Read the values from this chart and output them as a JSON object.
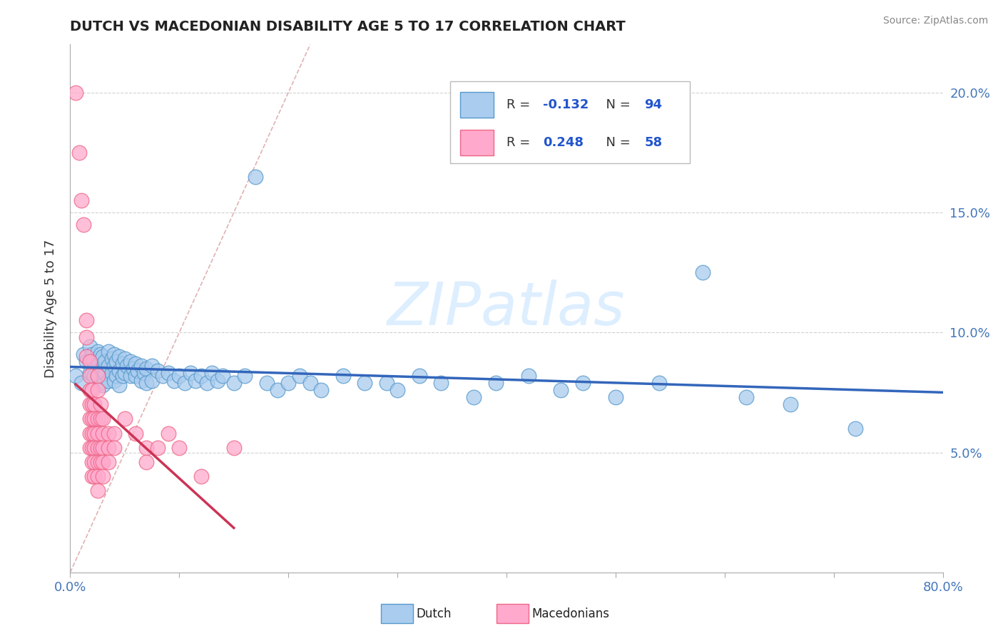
{
  "title": "DUTCH VS MACEDONIAN DISABILITY AGE 5 TO 17 CORRELATION CHART",
  "source": "Source: ZipAtlas.com",
  "ylabel": "Disability Age 5 to 17",
  "xlim": [
    0.0,
    0.8
  ],
  "ylim": [
    0.0,
    0.22
  ],
  "yticks": [
    0.05,
    0.1,
    0.15,
    0.2
  ],
  "yticklabels": [
    "5.0%",
    "10.0%",
    "15.0%",
    "20.0%"
  ],
  "dutch_R": -0.132,
  "dutch_N": 94,
  "mac_R": 0.248,
  "mac_N": 58,
  "dutch_face_color": "#aaccee",
  "dutch_edge_color": "#5599cc",
  "mac_face_color": "#ffaacc",
  "mac_edge_color": "#ee6688",
  "dutch_line_color": "#3366bb",
  "mac_line_color": "#cc3355",
  "ref_line_color": "#ddaaaa",
  "watermark": "ZIPatlas",
  "watermark_color": "#ddeeff",
  "background_color": "#ffffff",
  "grid_color": "#cccccc",
  "dutch_scatter": [
    [
      0.005,
      0.082
    ],
    [
      0.01,
      0.079
    ],
    [
      0.012,
      0.091
    ],
    [
      0.015,
      0.088
    ],
    [
      0.018,
      0.094
    ],
    [
      0.018,
      0.083
    ],
    [
      0.02,
      0.091
    ],
    [
      0.02,
      0.087
    ],
    [
      0.02,
      0.083
    ],
    [
      0.022,
      0.088
    ],
    [
      0.022,
      0.082
    ],
    [
      0.025,
      0.092
    ],
    [
      0.025,
      0.088
    ],
    [
      0.025,
      0.082
    ],
    [
      0.028,
      0.091
    ],
    [
      0.028,
      0.085
    ],
    [
      0.028,
      0.079
    ],
    [
      0.03,
      0.09
    ],
    [
      0.03,
      0.084
    ],
    [
      0.03,
      0.078
    ],
    [
      0.032,
      0.088
    ],
    [
      0.032,
      0.083
    ],
    [
      0.035,
      0.092
    ],
    [
      0.035,
      0.086
    ],
    [
      0.035,
      0.08
    ],
    [
      0.038,
      0.089
    ],
    [
      0.038,
      0.083
    ],
    [
      0.04,
      0.091
    ],
    [
      0.04,
      0.086
    ],
    [
      0.04,
      0.08
    ],
    [
      0.042,
      0.088
    ],
    [
      0.042,
      0.082
    ],
    [
      0.045,
      0.09
    ],
    [
      0.045,
      0.084
    ],
    [
      0.045,
      0.078
    ],
    [
      0.048,
      0.087
    ],
    [
      0.048,
      0.082
    ],
    [
      0.05,
      0.089
    ],
    [
      0.05,
      0.083
    ],
    [
      0.052,
      0.086
    ],
    [
      0.055,
      0.088
    ],
    [
      0.055,
      0.082
    ],
    [
      0.058,
      0.085
    ],
    [
      0.06,
      0.087
    ],
    [
      0.06,
      0.082
    ],
    [
      0.062,
      0.084
    ],
    [
      0.065,
      0.086
    ],
    [
      0.065,
      0.08
    ],
    [
      0.068,
      0.083
    ],
    [
      0.07,
      0.085
    ],
    [
      0.07,
      0.079
    ],
    [
      0.075,
      0.086
    ],
    [
      0.075,
      0.08
    ],
    [
      0.08,
      0.084
    ],
    [
      0.085,
      0.082
    ],
    [
      0.09,
      0.083
    ],
    [
      0.095,
      0.08
    ],
    [
      0.1,
      0.082
    ],
    [
      0.105,
      0.079
    ],
    [
      0.11,
      0.083
    ],
    [
      0.115,
      0.08
    ],
    [
      0.12,
      0.082
    ],
    [
      0.125,
      0.079
    ],
    [
      0.13,
      0.083
    ],
    [
      0.135,
      0.08
    ],
    [
      0.14,
      0.082
    ],
    [
      0.15,
      0.079
    ],
    [
      0.16,
      0.082
    ],
    [
      0.17,
      0.165
    ],
    [
      0.18,
      0.079
    ],
    [
      0.19,
      0.076
    ],
    [
      0.2,
      0.079
    ],
    [
      0.21,
      0.082
    ],
    [
      0.22,
      0.079
    ],
    [
      0.23,
      0.076
    ],
    [
      0.25,
      0.082
    ],
    [
      0.27,
      0.079
    ],
    [
      0.29,
      0.079
    ],
    [
      0.3,
      0.076
    ],
    [
      0.32,
      0.082
    ],
    [
      0.34,
      0.079
    ],
    [
      0.37,
      0.073
    ],
    [
      0.39,
      0.079
    ],
    [
      0.42,
      0.082
    ],
    [
      0.45,
      0.076
    ],
    [
      0.47,
      0.079
    ],
    [
      0.5,
      0.073
    ],
    [
      0.54,
      0.079
    ],
    [
      0.58,
      0.125
    ],
    [
      0.62,
      0.073
    ],
    [
      0.66,
      0.07
    ],
    [
      0.72,
      0.06
    ]
  ],
  "mac_scatter": [
    [
      0.005,
      0.2
    ],
    [
      0.008,
      0.175
    ],
    [
      0.01,
      0.155
    ],
    [
      0.012,
      0.145
    ],
    [
      0.015,
      0.105
    ],
    [
      0.015,
      0.098
    ],
    [
      0.015,
      0.09
    ],
    [
      0.018,
      0.088
    ],
    [
      0.018,
      0.082
    ],
    [
      0.018,
      0.076
    ],
    [
      0.018,
      0.07
    ],
    [
      0.018,
      0.064
    ],
    [
      0.018,
      0.058
    ],
    [
      0.018,
      0.052
    ],
    [
      0.02,
      0.076
    ],
    [
      0.02,
      0.07
    ],
    [
      0.02,
      0.064
    ],
    [
      0.02,
      0.058
    ],
    [
      0.02,
      0.052
    ],
    [
      0.02,
      0.046
    ],
    [
      0.02,
      0.04
    ],
    [
      0.022,
      0.07
    ],
    [
      0.022,
      0.064
    ],
    [
      0.022,
      0.058
    ],
    [
      0.022,
      0.052
    ],
    [
      0.022,
      0.046
    ],
    [
      0.022,
      0.04
    ],
    [
      0.025,
      0.082
    ],
    [
      0.025,
      0.076
    ],
    [
      0.025,
      0.064
    ],
    [
      0.025,
      0.058
    ],
    [
      0.025,
      0.052
    ],
    [
      0.025,
      0.046
    ],
    [
      0.025,
      0.04
    ],
    [
      0.025,
      0.034
    ],
    [
      0.028,
      0.07
    ],
    [
      0.028,
      0.064
    ],
    [
      0.028,
      0.052
    ],
    [
      0.028,
      0.046
    ],
    [
      0.03,
      0.064
    ],
    [
      0.03,
      0.058
    ],
    [
      0.03,
      0.052
    ],
    [
      0.03,
      0.046
    ],
    [
      0.03,
      0.04
    ],
    [
      0.035,
      0.058
    ],
    [
      0.035,
      0.052
    ],
    [
      0.035,
      0.046
    ],
    [
      0.04,
      0.058
    ],
    [
      0.04,
      0.052
    ],
    [
      0.05,
      0.064
    ],
    [
      0.06,
      0.058
    ],
    [
      0.07,
      0.052
    ],
    [
      0.07,
      0.046
    ],
    [
      0.08,
      0.052
    ],
    [
      0.09,
      0.058
    ],
    [
      0.1,
      0.052
    ],
    [
      0.12,
      0.04
    ],
    [
      0.15,
      0.052
    ]
  ]
}
